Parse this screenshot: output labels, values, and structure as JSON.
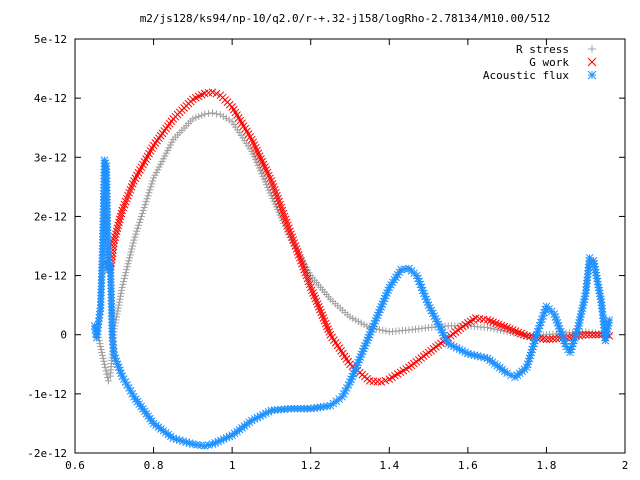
{
  "chart_data": {
    "type": "scatter",
    "title": "m2/js128/ks94/np-10/q2.0/r-+.32-j158/logRho-2.78134/M10.00/512",
    "xlim": [
      0.6,
      2.0
    ],
    "ylim": [
      -2e-12,
      5e-12
    ],
    "x_ticks": [
      "0.6",
      "0.8",
      "1",
      "1.2",
      "1.4",
      "1.6",
      "1.8",
      "2"
    ],
    "y_ticks": [
      "-2e-12",
      "-1e-12",
      "0",
      "1e-12",
      "2e-12",
      "3e-12",
      "4e-12",
      "5e-12"
    ],
    "x_tick_values": [
      0.6,
      0.8,
      1.0,
      1.2,
      1.4,
      1.6,
      1.8,
      2.0
    ],
    "y_tick_values": [
      -2e-12,
      -1e-12,
      0,
      1e-12,
      2e-12,
      3e-12,
      4e-12,
      5e-12
    ],
    "grid": false,
    "legend_position": "top-right",
    "series": [
      {
        "name": "R stress",
        "marker": "+",
        "color": "#a0a0a0",
        "x": [
          0.655,
          0.665,
          0.675,
          0.685,
          0.69,
          0.7,
          0.72,
          0.75,
          0.8,
          0.85,
          0.9,
          0.93,
          0.95,
          0.97,
          1.0,
          1.05,
          1.1,
          1.15,
          1.2,
          1.25,
          1.3,
          1.35,
          1.4,
          1.45,
          1.5,
          1.55,
          1.6,
          1.65,
          1.7,
          1.75,
          1.8,
          1.85,
          1.9,
          1.95,
          1.96
        ],
        "y": [
          1e-13,
          -2e-13,
          -5e-13,
          -7.8e-13,
          -7e-13,
          1e-13,
          8e-13,
          1.6e-12,
          2.65e-12,
          3.3e-12,
          3.65e-12,
          3.73e-12,
          3.75e-12,
          3.72e-12,
          3.6e-12,
          3.1e-12,
          2.35e-12,
          1.6e-12,
          1e-12,
          6e-13,
          3e-13,
          1.2e-13,
          5e-14,
          8e-14,
          1.2e-13,
          1.5e-13,
          1.5e-13,
          1.2e-13,
          5e-14,
          -2e-14,
          0.0,
          3e-14,
          5e-14,
          0.0,
          0.0
        ]
      },
      {
        "name": "G work",
        "marker": "x",
        "color": "#ff0000",
        "x": [
          0.675,
          0.68,
          0.69,
          0.7,
          0.72,
          0.75,
          0.8,
          0.85,
          0.9,
          0.93,
          0.95,
          0.97,
          1.0,
          1.05,
          1.1,
          1.15,
          1.2,
          1.25,
          1.3,
          1.35,
          1.38,
          1.4,
          1.45,
          1.5,
          1.55,
          1.6,
          1.62,
          1.65,
          1.7,
          1.75,
          1.8,
          1.85,
          1.9,
          1.95,
          1.96
        ],
        "y": [
          1.2e-12,
          1.22e-12,
          1.1e-12,
          1.6e-12,
          2.1e-12,
          2.6e-12,
          3.2e-12,
          3.65e-12,
          3.98e-12,
          4.08e-12,
          4.1e-12,
          4.05e-12,
          3.85e-12,
          3.3e-12,
          2.6e-12,
          1.7e-12,
          8e-13,
          0.0,
          -5e-13,
          -7.8e-13,
          -8e-13,
          -7.5e-13,
          -5.5e-13,
          -3e-13,
          -5e-14,
          2e-13,
          2.8e-13,
          2.5e-13,
          1.2e-13,
          -2e-14,
          -8e-14,
          -5e-14,
          0.0,
          0.0,
          -2e-14
        ]
      },
      {
        "name": "Acoustic flux",
        "marker": "*",
        "color": "#1e90ff",
        "x": [
          0.65,
          0.655,
          0.665,
          0.67,
          0.675,
          0.68,
          0.685,
          0.69,
          0.695,
          0.7,
          0.72,
          0.75,
          0.8,
          0.85,
          0.9,
          0.93,
          0.95,
          1.0,
          1.05,
          1.1,
          1.15,
          1.2,
          1.25,
          1.28,
          1.3,
          1.35,
          1.4,
          1.43,
          1.45,
          1.47,
          1.5,
          1.55,
          1.6,
          1.65,
          1.7,
          1.72,
          1.75,
          1.78,
          1.8,
          1.82,
          1.85,
          1.86,
          1.88,
          1.9,
          1.91,
          1.92,
          1.93,
          1.94,
          1.95,
          1.96
        ],
        "y": [
          1.5e-13,
          -5e-14,
          4.5e-13,
          1.4e-12,
          2.95e-12,
          2.85e-12,
          1.1e-12,
          1.2e-12,
          -5e-14,
          -3.5e-13,
          -7e-13,
          -1.05e-12,
          -1.5e-12,
          -1.75e-12,
          -1.85e-12,
          -1.88e-12,
          -1.85e-12,
          -1.7e-12,
          -1.45e-12,
          -1.28e-12,
          -1.25e-12,
          -1.25e-12,
          -1.2e-12,
          -1.05e-12,
          -8e-13,
          0.0,
          8e-13,
          1.1e-12,
          1.12e-12,
          1e-12,
          5e-13,
          -1.5e-13,
          -3.2e-13,
          -4e-13,
          -6.5e-13,
          -7.2e-13,
          -5.5e-13,
          1e-13,
          4.8e-13,
          3.5e-13,
          -2e-13,
          -3e-13,
          1e-13,
          7e-13,
          1.3e-12,
          1.25e-12,
          9e-13,
          5.5e-13,
          -1e-13,
          2.5e-13
        ]
      }
    ]
  }
}
